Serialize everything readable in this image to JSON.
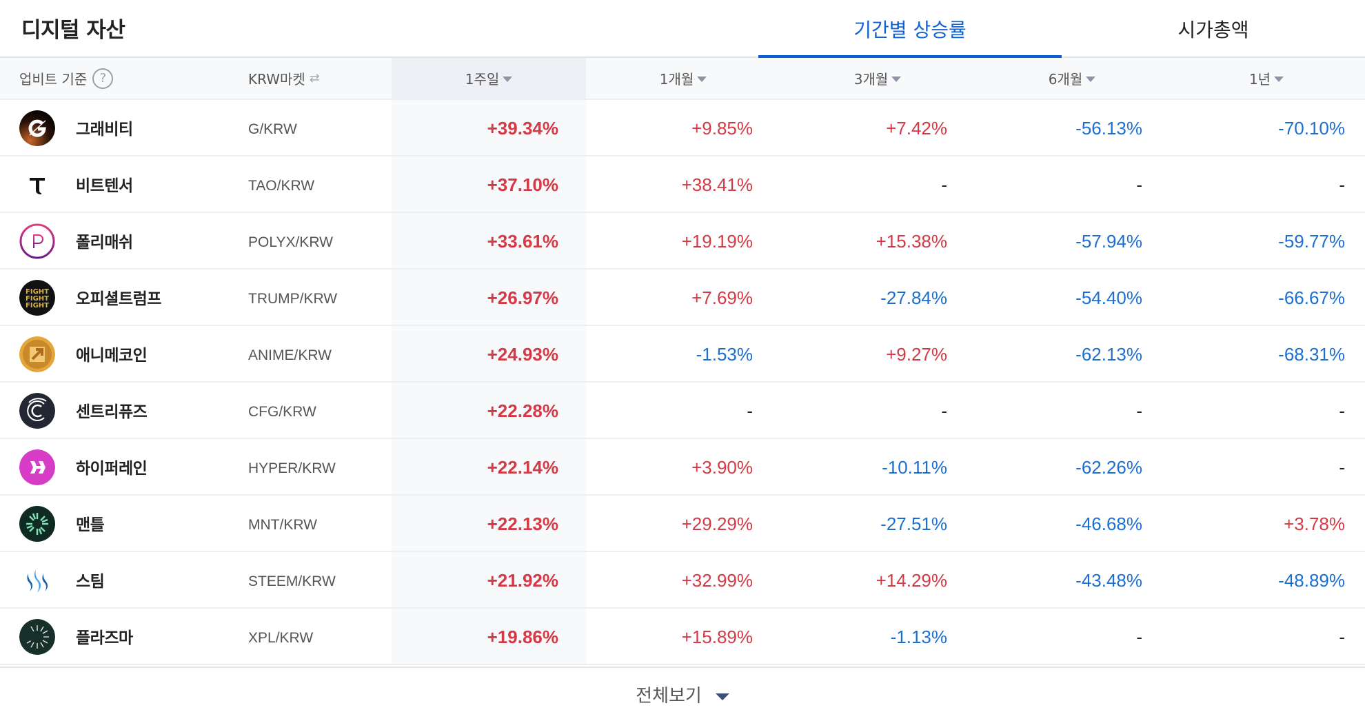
{
  "header": {
    "title": "디지털 자산",
    "tabs": [
      {
        "label": "기간별 상승률",
        "active": true
      },
      {
        "label": "시가총액",
        "active": false
      }
    ]
  },
  "table": {
    "basis_label": "업비트 기준",
    "help_icon": "?",
    "market_label": "KRW마켓",
    "market_swap_icon": "⇄",
    "columns": [
      {
        "label": "1주일",
        "selected": true
      },
      {
        "label": "1개월",
        "selected": false
      },
      {
        "label": "3개월",
        "selected": false
      },
      {
        "label": "6개월",
        "selected": false
      },
      {
        "label": "1년",
        "selected": false
      }
    ],
    "rows": [
      {
        "name": "그래비티",
        "pair": "G/KRW",
        "logo": "gravity-logo",
        "values": [
          "+39.34%",
          "+9.85%",
          "+7.42%",
          "-56.13%",
          "-70.10%"
        ]
      },
      {
        "name": "비트텐서",
        "pair": "TAO/KRW",
        "logo": "bittensor-logo",
        "values": [
          "+37.10%",
          "+38.41%",
          "-",
          "-",
          "-"
        ]
      },
      {
        "name": "폴리매쉬",
        "pair": "POLYX/KRW",
        "logo": "polymesh-logo",
        "values": [
          "+33.61%",
          "+19.19%",
          "+15.38%",
          "-57.94%",
          "-59.77%"
        ]
      },
      {
        "name": "오피셜트럼프",
        "pair": "TRUMP/KRW",
        "logo": "trump-logo",
        "values": [
          "+26.97%",
          "+7.69%",
          "-27.84%",
          "-54.40%",
          "-66.67%"
        ]
      },
      {
        "name": "애니메코인",
        "pair": "ANIME/KRW",
        "logo": "anime-logo",
        "values": [
          "+24.93%",
          "-1.53%",
          "+9.27%",
          "-62.13%",
          "-68.31%"
        ]
      },
      {
        "name": "센트리퓨즈",
        "pair": "CFG/KRW",
        "logo": "centrifuge-logo",
        "values": [
          "+22.28%",
          "-",
          "-",
          "-",
          "-"
        ]
      },
      {
        "name": "하이퍼레인",
        "pair": "HYPER/KRW",
        "logo": "hyperlane-logo",
        "values": [
          "+22.14%",
          "+3.90%",
          "-10.11%",
          "-62.26%",
          "-"
        ]
      },
      {
        "name": "맨틀",
        "pair": "MNT/KRW",
        "logo": "mantle-logo",
        "values": [
          "+22.13%",
          "+29.29%",
          "-27.51%",
          "-46.68%",
          "+3.78%"
        ]
      },
      {
        "name": "스팀",
        "pair": "STEEM/KRW",
        "logo": "steem-logo",
        "values": [
          "+21.92%",
          "+32.99%",
          "+14.29%",
          "-43.48%",
          "-48.89%"
        ]
      },
      {
        "name": "플라즈마",
        "pair": "XPL/KRW",
        "logo": "plasma-logo",
        "values": [
          "+19.86%",
          "+15.89%",
          "-1.13%",
          "-",
          "-"
        ]
      }
    ]
  },
  "footer": {
    "more_label": "전체보기"
  },
  "colors": {
    "accent": "#0a5fd7",
    "up": "#d33a45",
    "down": "#1c6fd1",
    "neutral": "#222222"
  }
}
